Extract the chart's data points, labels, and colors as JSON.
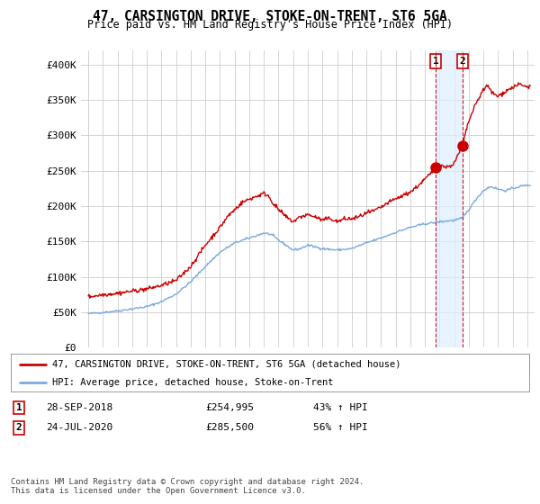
{
  "title": "47, CARSINGTON DRIVE, STOKE-ON-TRENT, ST6 5GA",
  "subtitle": "Price paid vs. HM Land Registry's House Price Index (HPI)",
  "property_label": "47, CARSINGTON DRIVE, STOKE-ON-TRENT, ST6 5GA (detached house)",
  "hpi_label": "HPI: Average price, detached house, Stoke-on-Trent",
  "footnote": "Contains HM Land Registry data © Crown copyright and database right 2024.\nThis data is licensed under the Open Government Licence v3.0.",
  "transactions": [
    {
      "label": "1",
      "date": "28-SEP-2018",
      "price": 254995,
      "pct": "43%",
      "dir": "↑"
    },
    {
      "label": "2",
      "date": "24-JUL-2020",
      "price": 285500,
      "pct": "56%",
      "dir": "↑"
    }
  ],
  "vline_dates": [
    2018.75,
    2020.56
  ],
  "dot_dates": [
    2018.75,
    2020.56
  ],
  "dot_prices": [
    254995,
    285500
  ],
  "property_color": "#cc0000",
  "hpi_color": "#7aaadd",
  "vline_color": "#cc0000",
  "shade_color": "#ddeeff",
  "background_color": "#ffffff",
  "grid_color": "#cccccc",
  "ylim": [
    0,
    420000
  ],
  "yticks": [
    0,
    50000,
    100000,
    150000,
    200000,
    250000,
    300000,
    350000,
    400000
  ],
  "ytick_labels": [
    "£0",
    "£50K",
    "£100K",
    "£150K",
    "£200K",
    "£250K",
    "£300K",
    "£350K",
    "£400K"
  ],
  "xlim_start": 1994.5,
  "xlim_end": 2025.5,
  "xticks": [
    1995,
    1996,
    1997,
    1998,
    1999,
    2000,
    2001,
    2002,
    2003,
    2004,
    2005,
    2006,
    2007,
    2008,
    2009,
    2010,
    2011,
    2012,
    2013,
    2014,
    2015,
    2016,
    2017,
    2018,
    2019,
    2020,
    2021,
    2022,
    2023,
    2024,
    2025
  ],
  "hpi_anchors": [
    [
      1995.0,
      48000
    ],
    [
      1996.0,
      50000
    ],
    [
      1997.0,
      52000
    ],
    [
      1998.0,
      55000
    ],
    [
      1999.0,
      58000
    ],
    [
      2000.0,
      65000
    ],
    [
      2001.0,
      76000
    ],
    [
      2002.0,
      93000
    ],
    [
      2003.0,
      115000
    ],
    [
      2004.0,
      135000
    ],
    [
      2005.0,
      148000
    ],
    [
      2006.0,
      155000
    ],
    [
      2007.0,
      162000
    ],
    [
      2007.5,
      160000
    ],
    [
      2008.0,
      152000
    ],
    [
      2009.0,
      138000
    ],
    [
      2009.5,
      140000
    ],
    [
      2010.0,
      145000
    ],
    [
      2011.0,
      140000
    ],
    [
      2012.0,
      138000
    ],
    [
      2013.0,
      140000
    ],
    [
      2014.0,
      148000
    ],
    [
      2015.0,
      155000
    ],
    [
      2016.0,
      163000
    ],
    [
      2017.0,
      170000
    ],
    [
      2018.0,
      175000
    ],
    [
      2018.75,
      177000
    ],
    [
      2019.0,
      178000
    ],
    [
      2020.0,
      180000
    ],
    [
      2020.56,
      183000
    ],
    [
      2021.0,
      195000
    ],
    [
      2021.5,
      210000
    ],
    [
      2022.0,
      222000
    ],
    [
      2022.5,
      228000
    ],
    [
      2023.0,
      224000
    ],
    [
      2023.5,
      222000
    ],
    [
      2024.0,
      225000
    ],
    [
      2024.5,
      228000
    ],
    [
      2025.2,
      230000
    ]
  ],
  "prop_anchors": [
    [
      1995.0,
      72000
    ],
    [
      1996.0,
      75000
    ],
    [
      1997.0,
      77000
    ],
    [
      1998.0,
      80000
    ],
    [
      1999.0,
      83000
    ],
    [
      2000.0,
      88000
    ],
    [
      2001.0,
      95000
    ],
    [
      2002.0,
      115000
    ],
    [
      2003.0,
      145000
    ],
    [
      2004.0,
      170000
    ],
    [
      2004.5,
      185000
    ],
    [
      2005.0,
      195000
    ],
    [
      2005.5,
      205000
    ],
    [
      2006.0,
      210000
    ],
    [
      2007.0,
      218000
    ],
    [
      2007.3,
      215000
    ],
    [
      2007.6,
      205000
    ],
    [
      2008.0,
      195000
    ],
    [
      2008.5,
      185000
    ],
    [
      2009.0,
      178000
    ],
    [
      2009.5,
      185000
    ],
    [
      2010.0,
      188000
    ],
    [
      2010.5,
      185000
    ],
    [
      2011.0,
      180000
    ],
    [
      2011.5,
      183000
    ],
    [
      2012.0,
      178000
    ],
    [
      2012.5,
      182000
    ],
    [
      2013.0,
      182000
    ],
    [
      2013.5,
      185000
    ],
    [
      2014.0,
      190000
    ],
    [
      2014.5,
      193000
    ],
    [
      2015.0,
      198000
    ],
    [
      2015.5,
      205000
    ],
    [
      2016.0,
      210000
    ],
    [
      2016.5,
      215000
    ],
    [
      2017.0,
      220000
    ],
    [
      2017.5,
      228000
    ],
    [
      2018.0,
      238000
    ],
    [
      2018.5,
      248000
    ],
    [
      2018.75,
      254995
    ],
    [
      2019.0,
      258000
    ],
    [
      2019.5,
      255000
    ],
    [
      2020.0,
      260000
    ],
    [
      2020.56,
      285500
    ],
    [
      2021.0,
      320000
    ],
    [
      2021.5,
      345000
    ],
    [
      2022.0,
      365000
    ],
    [
      2022.3,
      370000
    ],
    [
      2022.6,
      360000
    ],
    [
      2023.0,
      355000
    ],
    [
      2023.5,
      362000
    ],
    [
      2024.0,
      368000
    ],
    [
      2024.5,
      372000
    ],
    [
      2025.0,
      368000
    ],
    [
      2025.2,
      370000
    ]
  ]
}
